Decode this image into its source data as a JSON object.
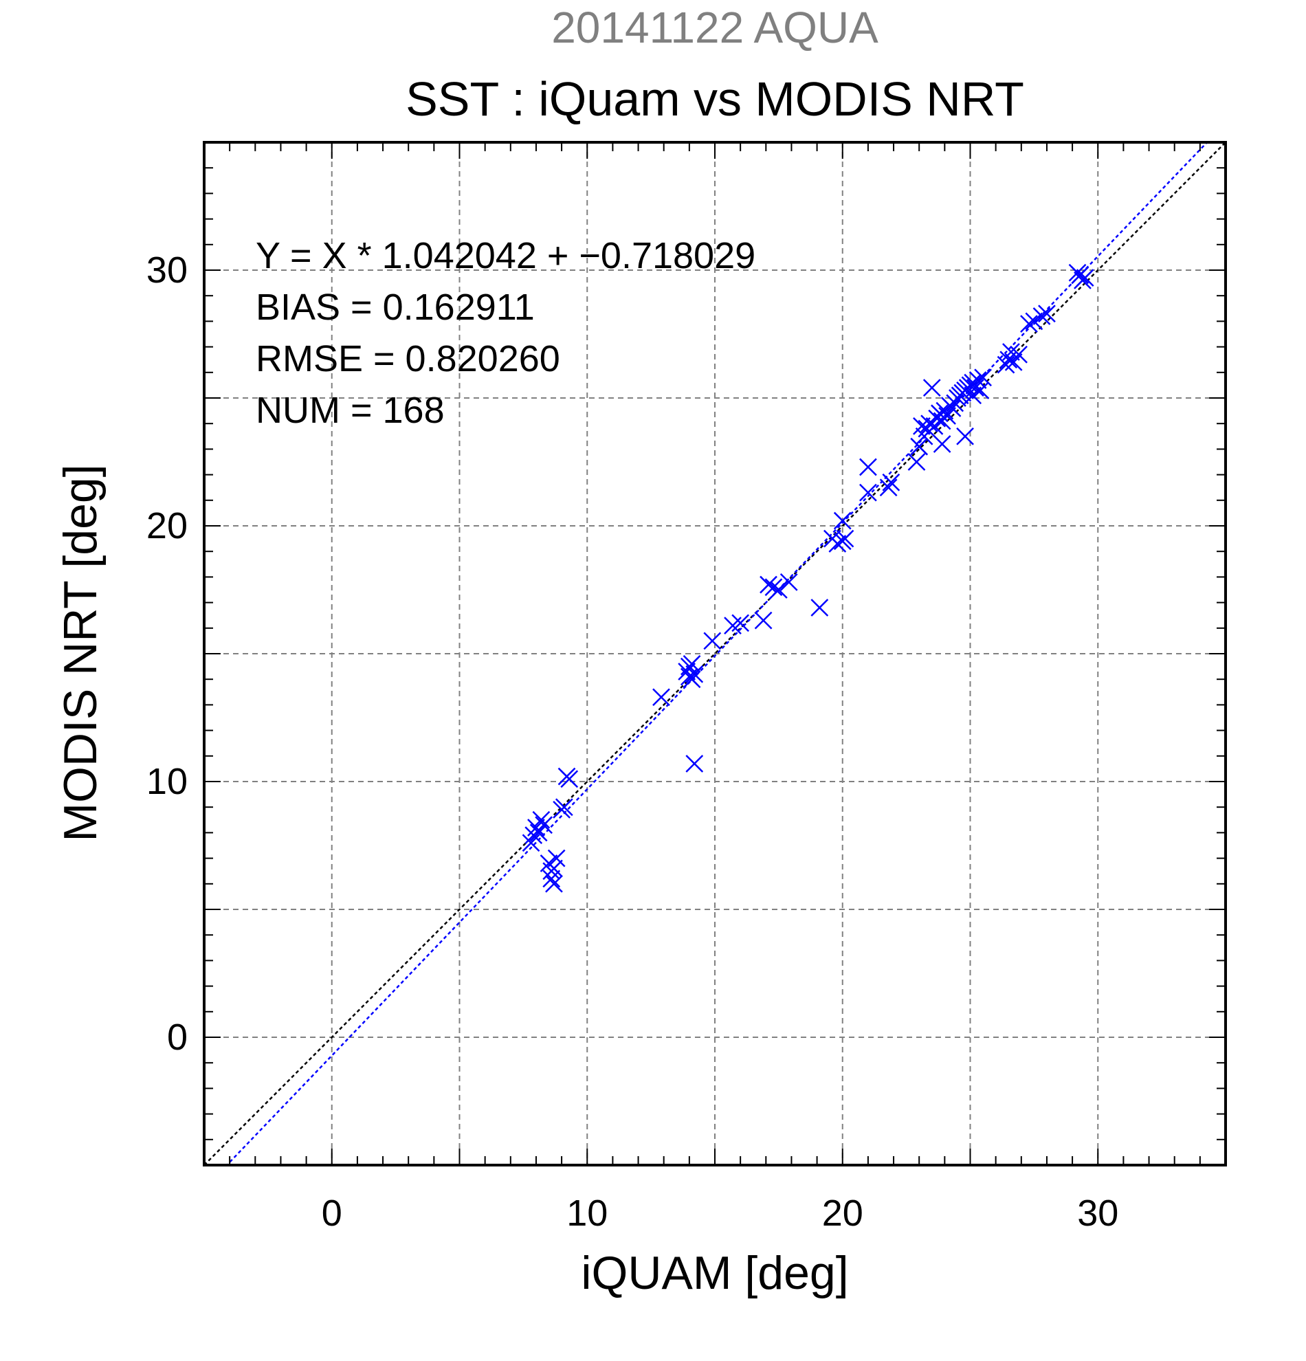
{
  "chart_data": {
    "type": "scatter",
    "supertitle": "20141122 AQUA",
    "title": "SST : iQuam vs MODIS NRT",
    "xlabel": "iQUAM [deg]",
    "ylabel": "MODIS NRT [deg]",
    "xlim": [
      -5,
      35
    ],
    "ylim": [
      -5,
      35
    ],
    "xticks": [
      0,
      10,
      20,
      30
    ],
    "yticks": [
      0,
      10,
      20,
      30
    ],
    "grid": true,
    "stats": {
      "equation": "Y = X * 1.042042 + −0.718029",
      "bias": "BIAS = 0.162911",
      "rmse": "RMSE = 0.820260",
      "num": "NUM = 168"
    },
    "fit_line": {
      "slope": 1.042042,
      "intercept": -0.718029
    },
    "reference_line": {
      "slope": 1,
      "intercept": 0
    },
    "series": [
      {
        "marker": "x",
        "color": "#0000ff",
        "x": [
          7.8,
          7.9,
          8.0,
          8.2,
          8.3,
          8.1,
          8.5,
          8.6,
          8.6,
          8.7,
          8.7,
          8.8,
          9.0,
          9.1,
          9.3,
          9.2,
          12.9,
          13.9,
          14.0,
          14.1,
          14.2,
          14.1,
          14.0,
          14.2,
          14.9,
          15.7,
          16.0,
          16.9,
          17.1,
          17.3,
          17.5,
          17.9,
          19.1,
          19.6,
          19.8,
          20.0,
          20.1,
          20.0,
          21.0,
          21.0,
          21.8,
          21.9,
          22.9,
          23.0,
          23.2,
          23.3,
          23.4,
          23.6,
          23.7,
          23.8,
          23.9,
          24.0,
          24.1,
          24.2,
          24.3,
          24.4,
          24.5,
          24.6,
          24.7,
          24.8,
          24.9,
          25.0,
          25.1,
          25.2,
          25.3,
          25.4,
          25.5,
          23.5,
          24.8,
          23.1,
          25.1,
          23.9,
          26.4,
          26.5,
          26.6,
          26.7,
          26.9,
          27.3,
          27.5,
          27.8,
          28.0,
          29.3,
          29.4,
          29.2,
          29.5
        ],
        "y": [
          7.6,
          7.9,
          8.2,
          8.5,
          8.3,
          8.0,
          6.8,
          6.5,
          6.2,
          6.0,
          6.6,
          7.0,
          8.9,
          9.0,
          10.1,
          10.2,
          13.3,
          14.3,
          14.5,
          14.6,
          14.2,
          14.0,
          14.1,
          10.7,
          15.5,
          16.1,
          16.2,
          16.3,
          17.7,
          17.6,
          17.5,
          17.8,
          16.8,
          19.5,
          19.3,
          19.4,
          19.5,
          20.2,
          21.3,
          22.3,
          21.5,
          21.7,
          22.5,
          23.1,
          23.5,
          23.8,
          24.0,
          23.9,
          24.2,
          24.4,
          24.1,
          24.5,
          24.3,
          24.7,
          24.6,
          24.8,
          25.0,
          25.1,
          25.2,
          25.3,
          25.4,
          25.5,
          25.6,
          25.4,
          25.7,
          25.3,
          25.8,
          25.4,
          23.5,
          23.9,
          25.1,
          23.2,
          26.3,
          26.5,
          26.8,
          26.4,
          26.7,
          27.9,
          28.0,
          28.2,
          28.3,
          29.8,
          29.6,
          29.9,
          29.7
        ]
      }
    ]
  }
}
